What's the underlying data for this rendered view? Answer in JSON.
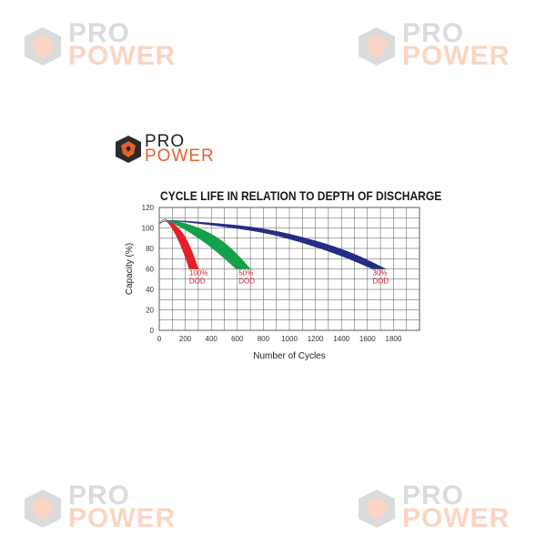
{
  "watermark": {
    "line1": "PRO",
    "line2": "POWER"
  },
  "logo": {
    "line1": "PRO",
    "line2": "POWER"
  },
  "colors": {
    "red": "#e32228",
    "green": "#13a14b",
    "navy": "#252d83",
    "logo_orange": "#e8612c",
    "dod_text": "#d0202e"
  },
  "chart_data": {
    "type": "area",
    "title": "CYCLE LIFE IN RELATION TO DEPTH OF DISCHARGE",
    "xlabel": "Number of Cycles",
    "ylabel": "Capacity (%)",
    "xlim": [
      0,
      2000
    ],
    "ylim": [
      0,
      120
    ],
    "x_ticks": [
      0,
      200,
      400,
      600,
      800,
      1000,
      1200,
      1400,
      1600,
      1800
    ],
    "y_ticks": [
      0,
      20,
      40,
      60,
      80,
      100,
      120
    ],
    "grid": true,
    "series": [
      {
        "name": "100% DOD",
        "label_lines": [
          "100%",
          "DOD"
        ],
        "color": "#e32228",
        "upper": [
          [
            0,
            104
          ],
          [
            50,
            108
          ],
          [
            120,
            104
          ],
          [
            200,
            92
          ],
          [
            260,
            75
          ],
          [
            300,
            60
          ]
        ],
        "lower": [
          [
            0,
            104
          ],
          [
            50,
            108
          ],
          [
            100,
            100
          ],
          [
            160,
            85
          ],
          [
            210,
            68
          ],
          [
            230,
            60
          ]
        ],
        "label_at": [
          230,
          54
        ]
      },
      {
        "name": "50% DOD",
        "label_lines": [
          "50%",
          "DOD"
        ],
        "color": "#13a14b",
        "upper": [
          [
            0,
            104
          ],
          [
            50,
            108
          ],
          [
            200,
            105
          ],
          [
            400,
            95
          ],
          [
            560,
            80
          ],
          [
            700,
            60
          ]
        ],
        "lower": [
          [
            0,
            104
          ],
          [
            50,
            108
          ],
          [
            180,
            100
          ],
          [
            330,
            88
          ],
          [
            460,
            75
          ],
          [
            590,
            60
          ]
        ],
        "label_at": [
          610,
          54
        ]
      },
      {
        "name": "30% DOD",
        "label_lines": [
          "30%",
          "DOD"
        ],
        "color": "#252d83",
        "upper": [
          [
            0,
            104
          ],
          [
            50,
            108
          ],
          [
            400,
            105
          ],
          [
            800,
            100
          ],
          [
            1200,
            88
          ],
          [
            1500,
            75
          ],
          [
            1740,
            60
          ]
        ],
        "lower": [
          [
            0,
            104
          ],
          [
            50,
            108
          ],
          [
            400,
            103
          ],
          [
            800,
            96
          ],
          [
            1100,
            86
          ],
          [
            1400,
            73
          ],
          [
            1640,
            60
          ]
        ],
        "label_at": [
          1640,
          54
        ]
      }
    ]
  }
}
